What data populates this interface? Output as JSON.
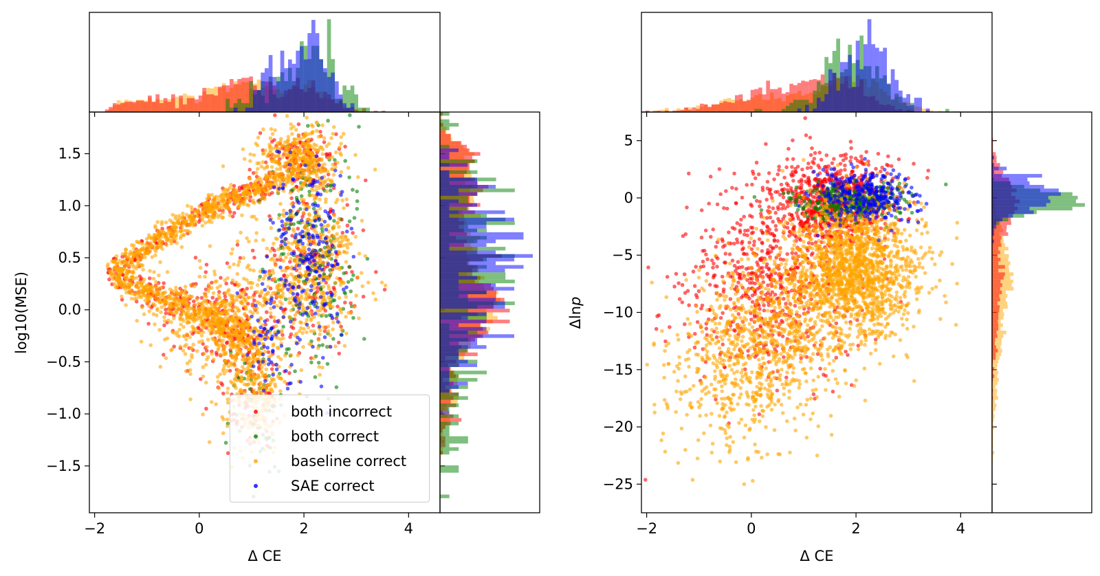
{
  "chart_data": [
    {
      "type": "scatter",
      "title": "",
      "xlabel": "Δ CE",
      "ylabel": "log10(MSE)",
      "xlim": [
        -2.1,
        4.6
      ],
      "ylim": [
        -1.95,
        1.9
      ],
      "xticks": [
        "−2",
        "0",
        "2",
        "4"
      ],
      "yticks": [
        "−1.5",
        "−1.0",
        "−0.5",
        "0.0",
        "0.5",
        "1.0",
        "1.5"
      ],
      "marginal_histograms": [
        "top",
        "right"
      ],
      "legend": {
        "placement": "lower-center",
        "entries": [
          "both incorrect",
          "both correct",
          "baseline correct",
          "SAE correct"
        ]
      },
      "series": [
        {
          "name": "both incorrect",
          "color": "#ff0000"
        },
        {
          "name": "both correct",
          "color": "#008000"
        },
        {
          "name": "baseline correct",
          "color": "#ffa500"
        },
        {
          "name": "SAE correct",
          "color": "#0000ff"
        }
      ]
    },
    {
      "type": "scatter",
      "title": "",
      "xlabel": "Δ CE",
      "ylabel": "Δln p",
      "xlim": [
        -2.1,
        4.6
      ],
      "ylim": [
        -27.5,
        7.5
      ],
      "xticks": [
        "−2",
        "0",
        "2",
        "4"
      ],
      "yticks": [
        "5",
        "0",
        "−5",
        "−10",
        "−15",
        "−20",
        "−25"
      ],
      "marginal_histograms": [
        "top",
        "right"
      ],
      "series": [
        {
          "name": "both incorrect",
          "color": "#ff0000"
        },
        {
          "name": "both correct",
          "color": "#008000"
        },
        {
          "name": "baseline correct",
          "color": "#ffa500"
        },
        {
          "name": "SAE correct",
          "color": "#0000ff"
        }
      ]
    }
  ]
}
